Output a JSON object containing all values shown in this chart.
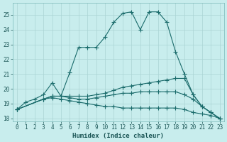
{
  "xlabel": "Humidex (Indice chaleur)",
  "bg_color": "#c8eded",
  "grid_color": "#aad4d4",
  "line_color": "#1a6b6b",
  "xlim": [
    -0.5,
    23.5
  ],
  "ylim": [
    17.8,
    25.8
  ],
  "yticks": [
    18,
    19,
    20,
    21,
    22,
    23,
    24,
    25
  ],
  "xticks": [
    0,
    1,
    2,
    3,
    4,
    5,
    6,
    7,
    8,
    9,
    10,
    11,
    12,
    13,
    14,
    15,
    16,
    17,
    18,
    19,
    20,
    21,
    22,
    23
  ],
  "series": [
    {
      "x": [
        0,
        1,
        2,
        3,
        4,
        5,
        6,
        7,
        8,
        9,
        10,
        11,
        12,
        13,
        14,
        15,
        16,
        17,
        18,
        19,
        20,
        21,
        22,
        23
      ],
      "y": [
        18.6,
        19.1,
        19.3,
        19.6,
        20.4,
        19.5,
        21.1,
        22.8,
        22.8,
        22.8,
        23.5,
        24.5,
        25.1,
        25.2,
        24.0,
        25.2,
        25.2,
        24.5,
        22.5,
        21.0,
        19.6,
        18.8,
        18.4,
        18.0
      ]
    },
    {
      "x": [
        0,
        3,
        4,
        5,
        6,
        7,
        8,
        9,
        10,
        11,
        12,
        13,
        14,
        15,
        16,
        17,
        18,
        19,
        20,
        21,
        22,
        23
      ],
      "y": [
        18.6,
        19.3,
        19.5,
        19.5,
        19.5,
        19.5,
        19.5,
        19.6,
        19.7,
        19.9,
        20.1,
        20.2,
        20.3,
        20.4,
        20.5,
        20.6,
        20.7,
        20.7,
        19.6,
        18.8,
        18.4,
        18.0
      ]
    },
    {
      "x": [
        0,
        3,
        4,
        5,
        6,
        7,
        8,
        9,
        10,
        11,
        12,
        13,
        14,
        15,
        16,
        17,
        18,
        19,
        20,
        21,
        22,
        23
      ],
      "y": [
        18.6,
        19.3,
        19.5,
        19.5,
        19.4,
        19.3,
        19.3,
        19.4,
        19.5,
        19.6,
        19.7,
        19.7,
        19.8,
        19.8,
        19.8,
        19.8,
        19.8,
        19.6,
        19.3,
        18.8,
        18.4,
        18.0
      ]
    },
    {
      "x": [
        0,
        3,
        4,
        5,
        6,
        7,
        8,
        9,
        10,
        11,
        12,
        13,
        14,
        15,
        16,
        17,
        18,
        19,
        20,
        21,
        22,
        23
      ],
      "y": [
        18.6,
        19.3,
        19.4,
        19.3,
        19.2,
        19.1,
        19.0,
        18.9,
        18.8,
        18.8,
        18.7,
        18.7,
        18.7,
        18.7,
        18.7,
        18.7,
        18.7,
        18.6,
        18.4,
        18.3,
        18.2,
        18.0
      ]
    }
  ]
}
